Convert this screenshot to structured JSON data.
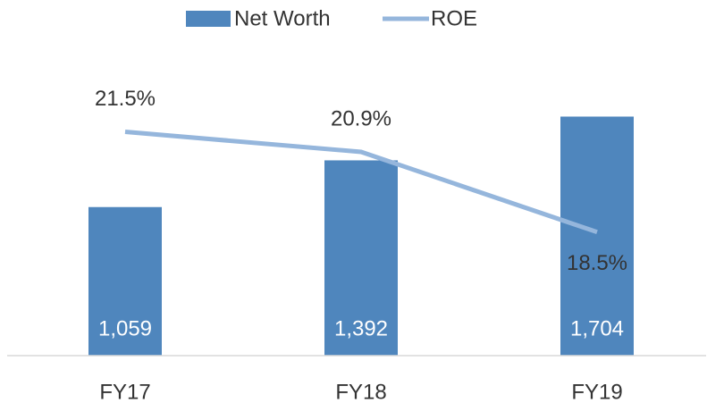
{
  "chart_data": {
    "type": "bar-line",
    "categories": [
      "FY17",
      "FY18",
      "FY19"
    ],
    "series": [
      {
        "name": "Net Worth",
        "type": "bar",
        "color": "#4f86bd",
        "values": [
          1059,
          1392,
          1704
        ],
        "value_labels": [
          "1,059",
          "1,392",
          "1,704"
        ]
      },
      {
        "name": "ROE",
        "type": "line",
        "axis": "y2",
        "color": "#95b6dc",
        "values": [
          21.5,
          20.9,
          18.5
        ],
        "value_labels": [
          "21.5%",
          "20.9%",
          "18.5%"
        ]
      }
    ],
    "ylim": [
      0,
      2000
    ],
    "y2lim": [
      14.8,
      23.2
    ],
    "legend": "top"
  }
}
